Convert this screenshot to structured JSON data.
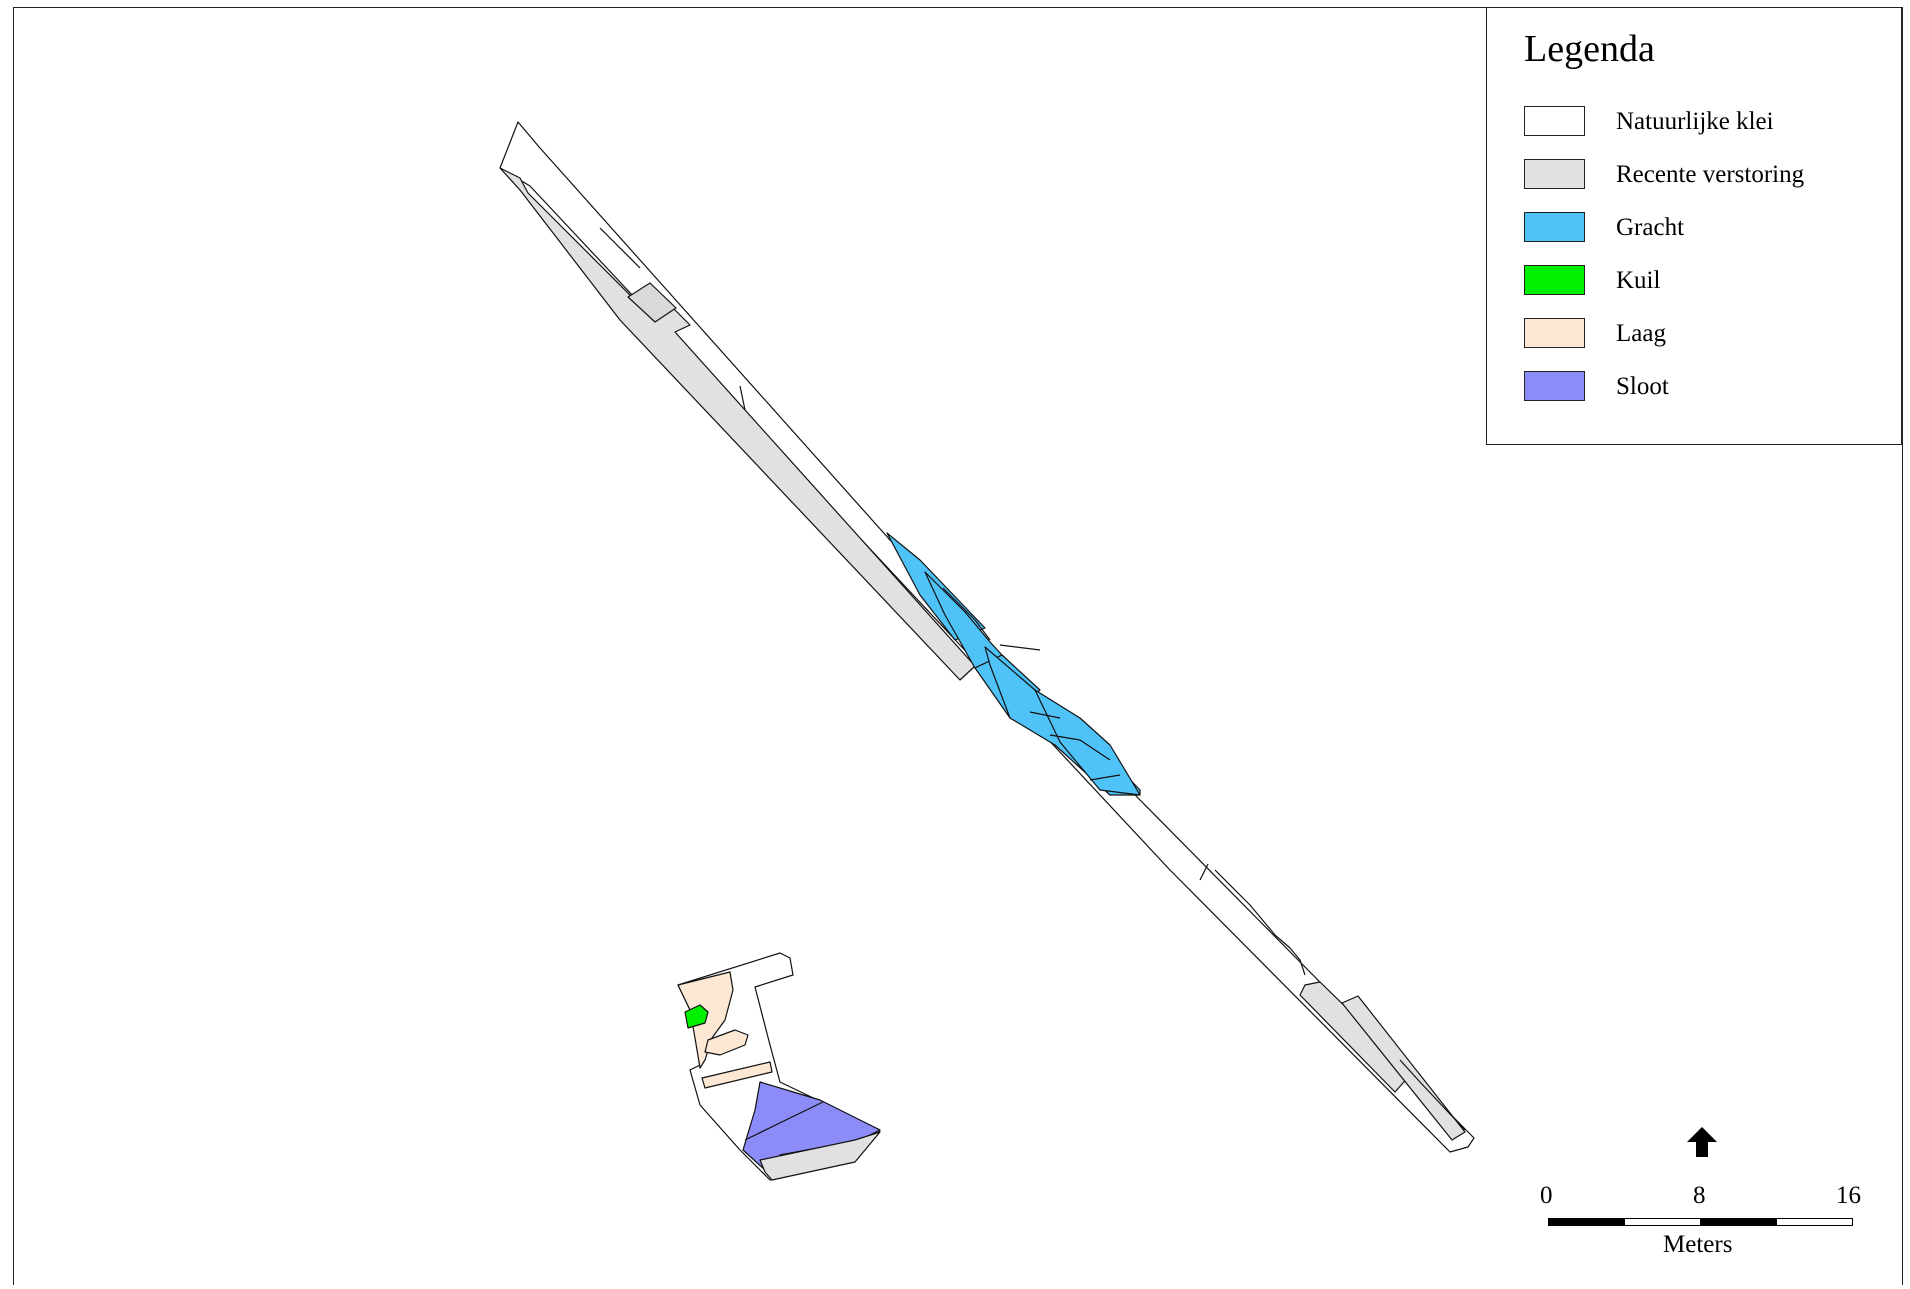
{
  "legend": {
    "title": "Legenda",
    "items": [
      {
        "label": "Natuurlijke klei",
        "color": "#FFFFFF"
      },
      {
        "label": "Recente verstoring",
        "color": "#E1E1E1"
      },
      {
        "label": "Gracht",
        "color": "#4FC3F7"
      },
      {
        "label": "Kuil",
        "color": "#00F000"
      },
      {
        "label": "Laag",
        "color": "#FCE8D3"
      },
      {
        "label": "Sloot",
        "color": "#8C8CF8"
      }
    ]
  },
  "scale": {
    "ticks": [
      "0",
      "8",
      "16"
    ],
    "unit": "Meters"
  },
  "north_arrow": "north-arrow-icon"
}
